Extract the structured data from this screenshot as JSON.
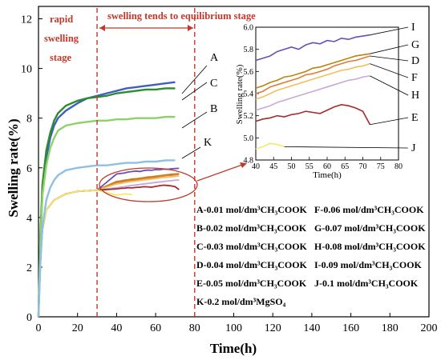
{
  "chart_data": [
    {
      "type": "line",
      "xlabel": "Time(h)",
      "ylabel": "Swelling rate(%)",
      "xlim": [
        0,
        200
      ],
      "ylim": [
        0,
        12.5
      ],
      "xticks": [
        0,
        20,
        40,
        60,
        80,
        100,
        120,
        140,
        160,
        180,
        200
      ],
      "yticks": [
        0,
        2,
        4,
        6,
        8,
        10,
        12
      ],
      "annotations": {
        "stage_rapid": [
          "rapid",
          "swelling",
          "stage"
        ],
        "stage_equilibrium": "swelling tends to equilibrium stage",
        "boundary_times": [
          30,
          80
        ]
      },
      "legend": [
        {
          "key": "A",
          "text": "A-0.01 mol/dm³CH₃COOK"
        },
        {
          "key": "F",
          "text": "F-0.06 mol/dm³CH₃COOK"
        },
        {
          "key": "B",
          "text": "B-0.02 mol/dm³CH₃COOK"
        },
        {
          "key": "G",
          "text": "G-0.07 mol/dm³CH₃COOK"
        },
        {
          "key": "C",
          "text": "C-0.03 mol/dm³CH₃COOK"
        },
        {
          "key": "H",
          "text": "H-0.08 mol/dm³CH₃COOK"
        },
        {
          "key": "D",
          "text": "D-0.04 mol/dm³CH₃COOK"
        },
        {
          "key": "I",
          "text": "I-0.09 mol/dm³CH₃COOK"
        },
        {
          "key": "E",
          "text": "E-0.05 mol/dm³CH₃COOK"
        },
        {
          "key": "J",
          "text": "J-0.1 mol/dm³CH₃COOK"
        },
        {
          "key": "K",
          "text": "K-0.2 mol/dm³MgSO₄"
        }
      ],
      "series": [
        {
          "name": "A",
          "color": "#3d5fc4",
          "x": [
            0,
            1,
            2,
            4,
            6,
            8,
            10,
            14,
            20,
            25,
            30,
            35,
            40,
            45,
            50,
            55,
            60,
            65,
            70
          ],
          "y": [
            0,
            3.2,
            5.0,
            6.4,
            7.2,
            7.7,
            8.0,
            8.3,
            8.6,
            8.8,
            8.9,
            9.0,
            9.1,
            9.2,
            9.25,
            9.3,
            9.35,
            9.4,
            9.45
          ]
        },
        {
          "name": "C",
          "color": "#2e8b2e",
          "x": [
            0,
            1,
            2,
            4,
            6,
            8,
            10,
            14,
            20,
            25,
            30,
            35,
            40,
            45,
            50,
            55,
            60,
            65,
            70
          ],
          "y": [
            0,
            3.4,
            5.3,
            6.7,
            7.4,
            7.9,
            8.2,
            8.5,
            8.7,
            8.8,
            8.85,
            8.9,
            9.0,
            9.05,
            9.1,
            9.15,
            9.15,
            9.2,
            9.2
          ]
        },
        {
          "name": "B",
          "color": "#8ed16a",
          "x": [
            0,
            1,
            2,
            4,
            6,
            8,
            10,
            14,
            20,
            25,
            30,
            35,
            40,
            45,
            50,
            55,
            60,
            65,
            70
          ],
          "y": [
            0,
            3.1,
            4.9,
            6.1,
            6.8,
            7.2,
            7.5,
            7.7,
            7.8,
            7.85,
            7.9,
            7.9,
            7.95,
            7.95,
            8.0,
            8.0,
            8.0,
            8.05,
            8.05
          ]
        },
        {
          "name": "K",
          "color": "#8fbfe6",
          "x": [
            0,
            1,
            2,
            4,
            6,
            8,
            10,
            14,
            20,
            25,
            30,
            35,
            40,
            45,
            50,
            55,
            60,
            65,
            70
          ],
          "y": [
            0,
            2.2,
            3.6,
            4.7,
            5.2,
            5.5,
            5.7,
            5.9,
            6.0,
            6.05,
            6.1,
            6.1,
            6.15,
            6.2,
            6.2,
            6.25,
            6.25,
            6.3,
            6.3
          ]
        }
      ]
    },
    {
      "type": "line",
      "xlabel": "Time(h)",
      "ylabel": "Swelling rate(%)",
      "xlim": [
        40,
        80
      ],
      "ylim": [
        4.8,
        6.0
      ],
      "xticks": [
        40,
        45,
        50,
        55,
        60,
        65,
        70,
        75,
        80
      ],
      "yticks": [
        4.8,
        5.0,
        5.2,
        5.4,
        5.6,
        5.8,
        6.0
      ],
      "series": [
        {
          "name": "I",
          "color": "#6a4fb5",
          "x": [
            40,
            42,
            44,
            46,
            48,
            50,
            52,
            54,
            56,
            58,
            60,
            62,
            64,
            66,
            68,
            70,
            72
          ],
          "y": [
            5.7,
            5.72,
            5.74,
            5.78,
            5.8,
            5.82,
            5.8,
            5.84,
            5.86,
            5.85,
            5.88,
            5.87,
            5.9,
            5.89,
            5.91,
            5.92,
            5.93
          ]
        },
        {
          "name": "G",
          "color": "#b8860b",
          "x": [
            40,
            42,
            44,
            46,
            48,
            50,
            52,
            54,
            56,
            58,
            60,
            62,
            64,
            66,
            68,
            70,
            72
          ],
          "y": [
            5.45,
            5.47,
            5.5,
            5.52,
            5.55,
            5.56,
            5.58,
            5.6,
            5.63,
            5.64,
            5.66,
            5.68,
            5.7,
            5.72,
            5.74,
            5.75,
            5.76
          ]
        },
        {
          "name": "D",
          "color": "#e07b39",
          "x": [
            40,
            42,
            44,
            46,
            48,
            50,
            52,
            54,
            56,
            58,
            60,
            62,
            64,
            66,
            68,
            70,
            72
          ],
          "y": [
            5.4,
            5.42,
            5.46,
            5.48,
            5.5,
            5.52,
            5.54,
            5.57,
            5.58,
            5.6,
            5.62,
            5.65,
            5.67,
            5.69,
            5.7,
            5.72,
            5.74
          ]
        },
        {
          "name": "F",
          "color": "#f0c060",
          "x": [
            40,
            42,
            44,
            46,
            48,
            50,
            52,
            54,
            56,
            58,
            60,
            62,
            64,
            66,
            68,
            70,
            72
          ],
          "y": [
            5.35,
            5.37,
            5.4,
            5.43,
            5.45,
            5.47,
            5.49,
            5.51,
            5.53,
            5.55,
            5.57,
            5.59,
            5.61,
            5.62,
            5.64,
            5.65,
            5.67
          ]
        },
        {
          "name": "H",
          "color": "#c9a8d8",
          "x": [
            40,
            42,
            44,
            46,
            48,
            50,
            52,
            54,
            56,
            58,
            60,
            62,
            64,
            66,
            68,
            70,
            72
          ],
          "y": [
            5.25,
            5.27,
            5.29,
            5.32,
            5.34,
            5.36,
            5.38,
            5.4,
            5.42,
            5.44,
            5.46,
            5.48,
            5.5,
            5.52,
            5.53,
            5.55,
            5.56
          ]
        },
        {
          "name": "E",
          "color": "#a52a2a",
          "x": [
            40,
            42,
            44,
            46,
            48,
            50,
            52,
            54,
            56,
            58,
            60,
            62,
            64,
            66,
            68,
            70,
            72
          ],
          "y": [
            5.15,
            5.17,
            5.18,
            5.2,
            5.19,
            5.21,
            5.22,
            5.24,
            5.23,
            5.22,
            5.25,
            5.28,
            5.3,
            5.29,
            5.27,
            5.24,
            5.12
          ]
        },
        {
          "name": "J",
          "color": "#f2ea6a",
          "x": [
            40,
            42,
            44,
            46,
            48
          ],
          "y": [
            4.9,
            4.92,
            4.95,
            4.94,
            4.92
          ]
        }
      ]
    }
  ]
}
